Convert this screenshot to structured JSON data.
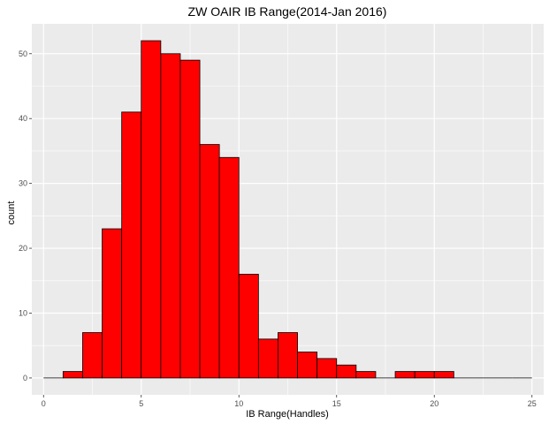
{
  "chart_data": {
    "type": "bar",
    "title": "ZW OAIR IB Range(2014-Jan 2016)",
    "xlabel": "IB Range(Handles)",
    "ylabel": "count",
    "bin_width": 1,
    "bin_starts": [
      0,
      1,
      2,
      3,
      4,
      5,
      6,
      7,
      8,
      9,
      10,
      11,
      12,
      13,
      14,
      15,
      16,
      17,
      18,
      19,
      20,
      21,
      22,
      23,
      24
    ],
    "values": [
      0,
      1,
      7,
      23,
      41,
      52,
      50,
      49,
      36,
      34,
      16,
      6,
      7,
      4,
      3,
      2,
      1,
      0,
      1,
      1,
      1,
      0,
      0,
      0,
      0
    ],
    "xlim": [
      -0.6,
      25.6
    ],
    "ylim": [
      -2.6,
      54.6
    ],
    "x_ticks": [
      0,
      5,
      10,
      15,
      20,
      25
    ],
    "y_ticks": [
      0,
      10,
      20,
      30,
      40,
      50
    ],
    "grid": true,
    "colors": {
      "bar_fill": "#ff0000",
      "bar_stroke": "#000000",
      "panel_background": "#ebebeb",
      "grid": "#ffffff"
    }
  }
}
